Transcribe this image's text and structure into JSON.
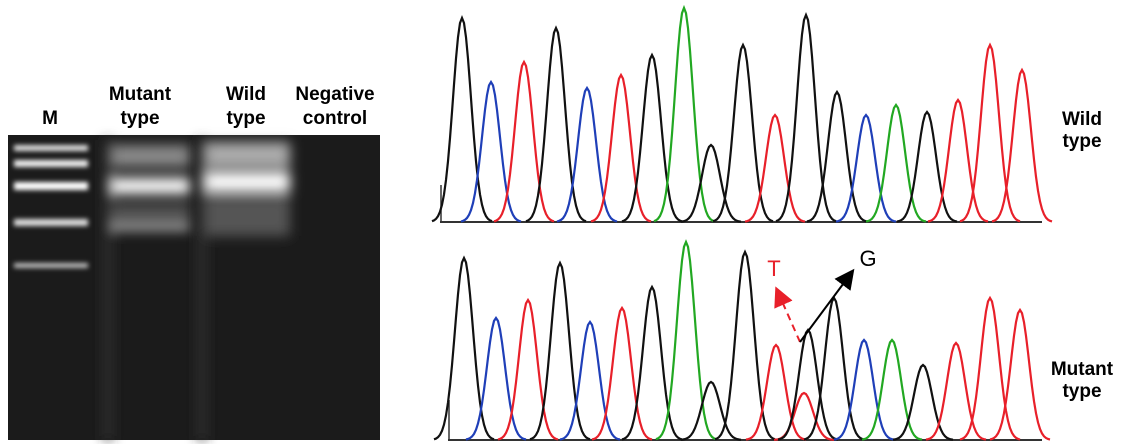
{
  "gel": {
    "lanes": [
      {
        "lines": [
          "M"
        ]
      },
      {
        "lines": [
          "Mutant",
          "type"
        ]
      },
      {
        "lines": [
          "Wild",
          "type"
        ]
      },
      {
        "lines": [
          "Negative",
          "control"
        ]
      }
    ]
  },
  "chromatograms": [
    {
      "lines": [
        "Wild",
        "type"
      ]
    },
    {
      "lines": [
        "Mutant",
        "type"
      ],
      "annotations": {
        "wild_base": "T",
        "mutant_base": "G"
      }
    }
  ]
}
